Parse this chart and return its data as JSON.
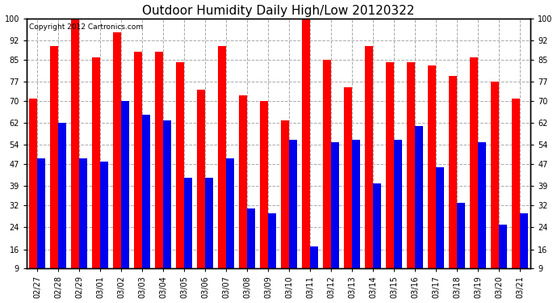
{
  "title": "Outdoor Humidity Daily High/Low 20120322",
  "copyright": "Copyright 2012 Cartronics.com",
  "categories": [
    "02/27",
    "02/28",
    "02/29",
    "03/01",
    "03/02",
    "03/03",
    "03/04",
    "03/05",
    "03/06",
    "03/07",
    "03/08",
    "03/09",
    "03/10",
    "03/11",
    "03/12",
    "03/13",
    "03/14",
    "03/15",
    "03/16",
    "03/17",
    "03/18",
    "03/19",
    "03/20",
    "03/21"
  ],
  "highs": [
    71,
    90,
    100,
    86,
    95,
    88,
    88,
    84,
    74,
    90,
    72,
    70,
    63,
    100,
    85,
    75,
    90,
    84,
    84,
    83,
    79,
    86,
    77,
    71
  ],
  "lows": [
    49,
    62,
    49,
    48,
    70,
    65,
    63,
    42,
    42,
    49,
    31,
    29,
    56,
    17,
    55,
    56,
    40,
    56,
    61,
    46,
    33,
    55,
    25,
    29
  ],
  "high_color": "#ff0000",
  "low_color": "#0000ee",
  "bg_color": "#ffffff",
  "grid_color": "#aaaaaa",
  "ylim_min": 9,
  "ylim_max": 100,
  "yticks": [
    9,
    16,
    24,
    32,
    39,
    47,
    54,
    62,
    70,
    77,
    85,
    92,
    100
  ],
  "bar_width": 0.38,
  "title_fontsize": 11,
  "tick_fontsize": 7,
  "copyright_fontsize": 6.5
}
